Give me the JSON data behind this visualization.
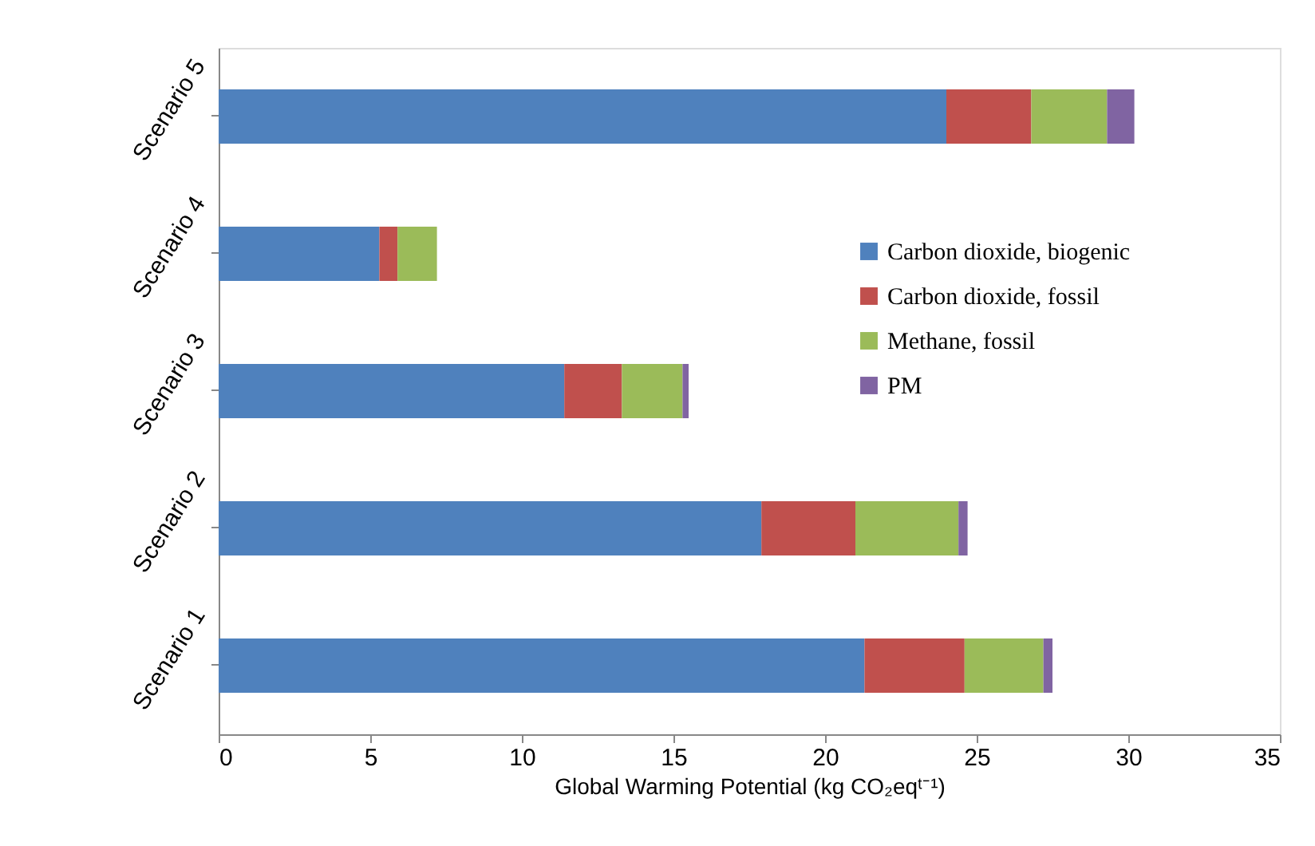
{
  "chart_data": {
    "type": "bar",
    "orientation": "horizontal",
    "stacked": true,
    "categories": [
      "Scenario 5",
      "Scenario 4",
      "Scenario 3",
      "Scenario 2",
      "Scenario 1"
    ],
    "series": [
      {
        "name": "Carbon dioxide, biogenic",
        "color": "#4f81bd",
        "values": [
          24.0,
          5.3,
          11.4,
          17.9,
          21.3
        ]
      },
      {
        "name": "Carbon dioxide, fossil",
        "color": "#c0504d",
        "values": [
          2.8,
          0.6,
          1.9,
          3.1,
          3.3
        ]
      },
      {
        "name": "Methane, fossil",
        "color": "#9bbb59",
        "values": [
          2.5,
          1.3,
          2.0,
          3.4,
          2.6
        ]
      },
      {
        "name": "PM",
        "color": "#8064a2",
        "values": [
          0.9,
          0,
          0.2,
          0.3,
          0.3
        ]
      }
    ],
    "xlabel": "Global Warming Potential (kg CO₂eqᵗ⁻¹)",
    "xlim": [
      0,
      35
    ],
    "xticks": [
      0,
      5,
      10,
      15,
      20,
      25,
      30,
      35
    ],
    "grid": false,
    "legend": "right"
  }
}
